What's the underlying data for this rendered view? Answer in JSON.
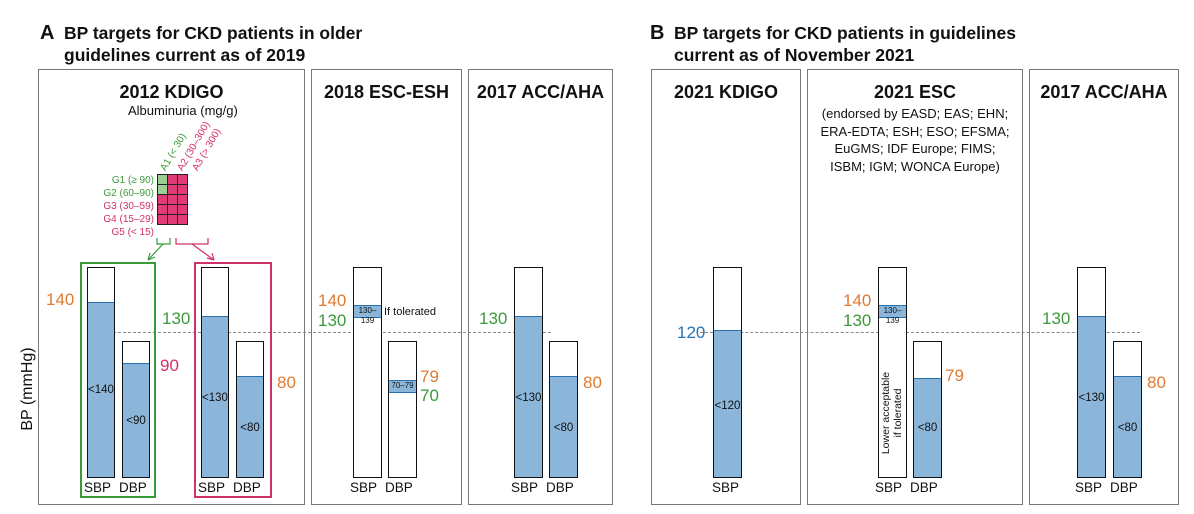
{
  "panel_a": {
    "letter": "A",
    "title_line1": "BP targets for CKD patients in older",
    "title_line2": "guidelines current as of 2019"
  },
  "panel_b": {
    "letter": "B",
    "title_line1": "BP targets for CKD patients in guidelines",
    "title_line2": "current as of November 2021"
  },
  "y_axis_label": "BP (mmHg)",
  "kdigo2012": {
    "title": "2012 KDIGO",
    "albuminuria_label": "Albuminuria (mg/g)",
    "a_categories": [
      "A1 (< 30)",
      "A2 (30–300)",
      "A3 (> 300)"
    ],
    "g_categories": [
      "G1 (≥ 90)",
      "G2 (60–90)",
      "G3 (30–59)",
      "G4 (15–29)",
      "G5 (< 15)"
    ],
    "group1": {
      "sbp_target": "140",
      "dbp_target": "90",
      "sbp_label": "<140",
      "dbp_label": "<90",
      "x1": "SBP",
      "x2": "DBP"
    },
    "group2": {
      "sbp_target": "130",
      "dbp_target": "80",
      "sbp_label": "<130",
      "dbp_label": "<80",
      "x1": "SBP",
      "x2": "DBP"
    }
  },
  "esc_esh2018": {
    "title": "2018 ESC-ESH",
    "sbp_upper": "140",
    "sbp_lower": "130",
    "sbp_band": "130–139",
    "if_tolerated": "If tolerated",
    "dbp_upper": "79",
    "dbp_lower": "70",
    "dbp_band": "70–79",
    "x1": "SBP",
    "x2": "DBP"
  },
  "acc_aha2017_a": {
    "title": "2017 ACC/AHA",
    "sbp_target": "130",
    "dbp_target": "80",
    "sbp_label": "<130",
    "dbp_label": "<80",
    "x1": "SBP",
    "x2": "DBP"
  },
  "kdigo2021": {
    "title": "2021 KDIGO",
    "sbp_target": "120",
    "sbp_label": "<120",
    "x1": "SBP"
  },
  "esc2021": {
    "title": "2021 ESC",
    "endorsement_lines": [
      "(endorsed by EASD; EAS; EHN;",
      "ERA-EDTA; ESH; ESO; EFSMA;",
      "EuGMS; IDF Europe; FIMS;",
      "ISBM; IGM; WONCA Europe)"
    ],
    "sbp_upper": "140",
    "sbp_lower": "130",
    "sbp_band": "130–139",
    "lower_note_line1": "Lower acceptable",
    "lower_note_line2": "if tolerated",
    "dbp_target": "79",
    "dbp_label": "<80",
    "x1": "SBP",
    "x2": "DBP"
  },
  "acc_aha2017_b": {
    "title": "2017 ACC/AHA",
    "sbp_target": "130",
    "dbp_target": "80",
    "sbp_label": "<130",
    "dbp_label": "<80",
    "x1": "SBP",
    "x2": "DBP"
  },
  "colors": {
    "fill": "#8cb6d9",
    "orange": "#e07a30",
    "green": "#3a9a3a",
    "magenta": "#d0306b",
    "blue": "#2672b3"
  }
}
